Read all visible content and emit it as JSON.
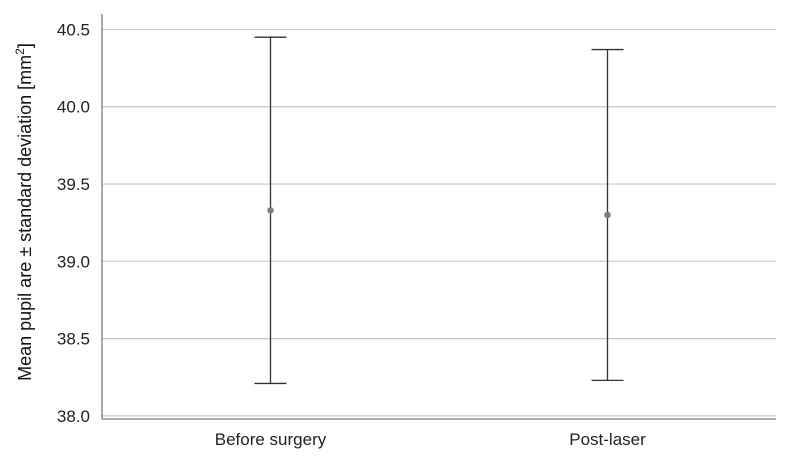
{
  "chart_data": {
    "type": "errorbar",
    "categories": [
      "Before surgery",
      "Post-laser"
    ],
    "series": [
      {
        "mean": [
          39.33,
          39.3
        ],
        "lower": [
          38.21,
          38.23
        ],
        "upper": [
          40.45,
          40.37
        ]
      }
    ],
    "title": "",
    "xlabel": "",
    "ylabel": "Mean pupil are ± standard deviation [mm",
    "ylabel_superscript": "2",
    "ylabel_suffix": "]",
    "ylim": [
      37.98,
      40.6
    ],
    "yticks": [
      38.0,
      38.5,
      39.0,
      39.5,
      40.0,
      40.5
    ],
    "ytick_labels": [
      "38.0",
      "38.5",
      "39.0",
      "39.5",
      "40.0",
      "40.5"
    ],
    "grid": "horizontal",
    "colors": {
      "grid": "#c8c8c8",
      "axis": "#555555",
      "errorbar": "#333333",
      "marker": "#808080"
    }
  }
}
